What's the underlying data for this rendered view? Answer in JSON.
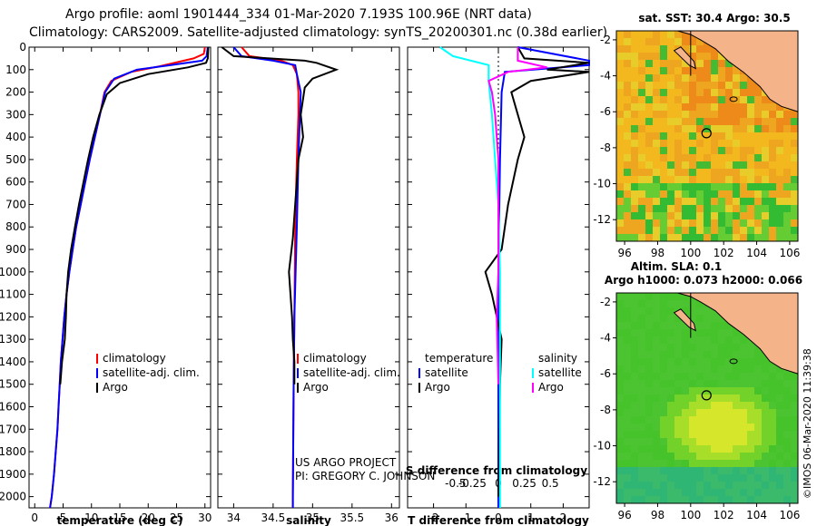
{
  "header": {
    "line1": "Argo profile: aoml 1901444_334 01-Mar-2020 7.193S 100.96E (NRT data)",
    "line2": "Climatology: CARS2009. Satellite-adjusted climatology: synTS_20200301.nc (0.38d earlier)"
  },
  "colors": {
    "climatology": "#ff0000",
    "satellite": "#0000ff",
    "argo": "#000000",
    "sat_salinity": "#00ffff",
    "argo_salinity": "#ff00ff",
    "land": "#f5b38a"
  },
  "chart_data": [
    {
      "id": "temperature",
      "type": "line",
      "xlabel": "temperature (deg C)",
      "xlim": [
        -1,
        31
      ],
      "xticks": [
        0,
        5,
        10,
        15,
        20,
        25,
        30
      ],
      "ylim": [
        0,
        2050
      ],
      "yticks": [
        0,
        100,
        200,
        300,
        400,
        500,
        600,
        700,
        800,
        900,
        1000,
        1100,
        1200,
        1300,
        1400,
        1500,
        1600,
        1700,
        1800,
        1900,
        2000
      ],
      "legend": [
        "climatology",
        "satellite-adj. clim.",
        "Argo"
      ],
      "series": [
        {
          "name": "climatology",
          "color": "#ff0000",
          "points": [
            [
              30,
              0
            ],
            [
              29.8,
              30
            ],
            [
              28,
              50
            ],
            [
              22,
              85
            ],
            [
              17,
              110
            ],
            [
              13.5,
              150
            ],
            [
              12.3,
              200
            ],
            [
              11.5,
              300
            ],
            [
              10.6,
              400
            ],
            [
              9.7,
              500
            ],
            [
              8.9,
              600
            ],
            [
              8.1,
              700
            ],
            [
              7.3,
              800
            ],
            [
              6.7,
              900
            ],
            [
              6.1,
              1000
            ],
            [
              5.6,
              1100
            ],
            [
              5.2,
              1200
            ],
            [
              4.9,
              1300
            ],
            [
              4.6,
              1400
            ],
            [
              4.4,
              1500
            ],
            [
              4.2,
              1600
            ],
            [
              4.0,
              1700
            ],
            [
              3.7,
              1800
            ],
            [
              3.4,
              1900
            ],
            [
              3.0,
              2000
            ],
            [
              2.7,
              2050
            ]
          ]
        },
        {
          "name": "satellite-adj. clim.",
          "color": "#0000ff",
          "points": [
            [
              30.5,
              0
            ],
            [
              30.3,
              40
            ],
            [
              29.5,
              60
            ],
            [
              24,
              80
            ],
            [
              18,
              100
            ],
            [
              14,
              140
            ],
            [
              12.4,
              200
            ],
            [
              11.5,
              300
            ],
            [
              10.6,
              400
            ],
            [
              9.7,
              500
            ],
            [
              8.9,
              600
            ],
            [
              8.1,
              700
            ],
            [
              7.3,
              800
            ],
            [
              6.7,
              900
            ],
            [
              6.1,
              1000
            ],
            [
              5.6,
              1100
            ],
            [
              5.2,
              1200
            ],
            [
              4.9,
              1300
            ],
            [
              4.6,
              1400
            ],
            [
              4.4,
              1500
            ],
            [
              4.2,
              1600
            ],
            [
              4.0,
              1700
            ],
            [
              3.7,
              1800
            ],
            [
              3.4,
              1900
            ],
            [
              3.0,
              2000
            ],
            [
              2.7,
              2050
            ]
          ]
        },
        {
          "name": "Argo",
          "color": "#000000",
          "points": [
            [
              30.6,
              0
            ],
            [
              30.5,
              50
            ],
            [
              30.2,
              70
            ],
            [
              27,
              90
            ],
            [
              20,
              120
            ],
            [
              15,
              160
            ],
            [
              12.7,
              210
            ],
            [
              11.4,
              300
            ],
            [
              10.3,
              400
            ],
            [
              9.4,
              500
            ],
            [
              8.6,
              600
            ],
            [
              7.8,
              700
            ],
            [
              7.1,
              800
            ],
            [
              6.4,
              900
            ],
            [
              5.9,
              1000
            ],
            [
              5.6,
              1100
            ],
            [
              5.5,
              1200
            ],
            [
              5.3,
              1300
            ],
            [
              4.8,
              1400
            ],
            [
              4.5,
              1500
            ]
          ]
        }
      ]
    },
    {
      "id": "salinity",
      "type": "line",
      "xlabel": "salinity",
      "xlim": [
        33.8,
        36.1
      ],
      "xticks": [
        "34",
        "34.5",
        "35",
        "35.5",
        "36"
      ],
      "ylim": [
        0,
        2050
      ],
      "legend": [
        "climatology",
        "satellite-adj. clim.",
        "Argo"
      ],
      "credits": [
        "US ARGO PROJECT",
        "PI: GREGORY C. JOHNSON"
      ],
      "series": [
        {
          "name": "climatology",
          "color": "#ff0000",
          "points": [
            [
              34.1,
              0
            ],
            [
              34.2,
              40
            ],
            [
              34.6,
              60
            ],
            [
              34.75,
              80
            ],
            [
              34.8,
              120
            ],
            [
              34.82,
              200
            ],
            [
              34.82,
              300
            ],
            [
              34.8,
              500
            ],
            [
              34.78,
              800
            ],
            [
              34.77,
              1200
            ],
            [
              34.76,
              1500
            ],
            [
              34.75,
              2000
            ],
            [
              34.75,
              2050
            ]
          ]
        },
        {
          "name": "satellite-adj. clim.",
          "color": "#0000ff",
          "points": [
            [
              34.0,
              0
            ],
            [
              34.1,
              40
            ],
            [
              34.5,
              60
            ],
            [
              34.78,
              80
            ],
            [
              34.8,
              120
            ],
            [
              34.85,
              200
            ],
            [
              34.84,
              300
            ],
            [
              34.82,
              500
            ],
            [
              34.8,
              800
            ],
            [
              34.77,
              1200
            ],
            [
              34.76,
              1500
            ],
            [
              34.75,
              2000
            ],
            [
              34.75,
              2050
            ]
          ]
        },
        {
          "name": "Argo",
          "color": "#000000",
          "points": [
            [
              33.85,
              0
            ],
            [
              34.0,
              40
            ],
            [
              34.9,
              60
            ],
            [
              35.05,
              70
            ],
            [
              35.3,
              100
            ],
            [
              35.0,
              140
            ],
            [
              34.9,
              180
            ],
            [
              34.85,
              300
            ],
            [
              34.88,
              400
            ],
            [
              34.82,
              500
            ],
            [
              34.78,
              700
            ],
            [
              34.75,
              850
            ],
            [
              34.7,
              1000
            ],
            [
              34.72,
              1100
            ],
            [
              34.74,
              1200
            ],
            [
              34.75,
              1300
            ],
            [
              34.77,
              1400
            ],
            [
              34.77,
              1500
            ]
          ]
        }
      ]
    },
    {
      "id": "difference",
      "type": "line",
      "xlabel": "T difference from climatology",
      "secondary_label": "S difference from climatology",
      "xlim": [
        -2.8,
        2.8
      ],
      "xticks": [
        "-2",
        "-1",
        "0",
        "1",
        "2"
      ],
      "secondary_xticks": [
        "-0.5",
        "-0.25",
        "0",
        "0.25",
        "0.5"
      ],
      "ylim": [
        0,
        2050
      ],
      "legend_headings": [
        "temperature",
        "salinity"
      ],
      "legend": [
        "satellite",
        "Argo",
        "satellite",
        "Argo"
      ],
      "series": [
        {
          "name": "T satellite",
          "color": "#0000ff",
          "points": [
            [
              0.6,
              0
            ],
            [
              2.8,
              60
            ],
            [
              2.8,
              80
            ],
            [
              0.2,
              110
            ],
            [
              0.1,
              200
            ],
            [
              0.05,
              500
            ],
            [
              0,
              1000
            ],
            [
              0,
              2050
            ]
          ]
        },
        {
          "name": "T Argo",
          "color": "#000000",
          "points": [
            [
              0.6,
              0
            ],
            [
              0.8,
              50
            ],
            [
              2.8,
              70
            ],
            [
              1.5,
              100
            ],
            [
              2.8,
              110
            ],
            [
              1.0,
              150
            ],
            [
              0.4,
              200
            ],
            [
              0.6,
              300
            ],
            [
              0.8,
              400
            ],
            [
              0.6,
              500
            ],
            [
              0.3,
              700
            ],
            [
              0.1,
              900
            ],
            [
              -0.4,
              1000
            ],
            [
              -0.2,
              1100
            ],
            [
              0.1,
              1300
            ],
            [
              0.05,
              1500
            ],
            [
              0,
              2000
            ]
          ]
        },
        {
          "name": "S satellite",
          "color": "#00ffff",
          "points": [
            [
              -1.8,
              0
            ],
            [
              -1.4,
              40
            ],
            [
              -0.3,
              80
            ],
            [
              -0.3,
              150
            ],
            [
              -0.2,
              300
            ],
            [
              -0.1,
              500
            ],
            [
              0,
              700
            ],
            [
              0.05,
              1000
            ],
            [
              0.05,
              1500
            ],
            [
              0.05,
              2050
            ]
          ]
        },
        {
          "name": "S Argo",
          "color": "#ff00ff",
          "points": [
            [
              0.6,
              0
            ],
            [
              0.6,
              60
            ],
            [
              1.5,
              90
            ],
            [
              0.3,
              110
            ],
            [
              -0.3,
              150
            ],
            [
              -0.2,
              200
            ],
            [
              -0.1,
              300
            ],
            [
              0,
              500
            ],
            [
              0,
              800
            ],
            [
              0,
              1000
            ],
            [
              -0.05,
              1200
            ],
            [
              0,
              1500
            ]
          ]
        }
      ]
    }
  ],
  "map_top": {
    "title": "sat. SST: 30.4 Argo: 30.5",
    "xticks": [
      "96",
      "98",
      "100",
      "102",
      "104",
      "106"
    ],
    "yticks": [
      "-2",
      "-4",
      "-6",
      "-8",
      "-10",
      "-12"
    ],
    "xlim": [
      95.5,
      106.5
    ],
    "ylim": [
      -1.5,
      -13.2
    ],
    "argo_lon": 100.96,
    "argo_lat": -7.193
  },
  "map_bottom": {
    "title1": "Altim. SLA: 0.1",
    "title2": "Argo h1000: 0.073 h2000: 0.066",
    "xticks": [
      "96",
      "98",
      "100",
      "102",
      "104",
      "106"
    ],
    "yticks": [
      "-2",
      "-4",
      "-6",
      "-8",
      "-10",
      "-12"
    ],
    "xlim": [
      95.5,
      106.5
    ],
    "ylim": [
      -1.5,
      -13.2
    ],
    "argo_lon": 100.96,
    "argo_lat": -7.193
  },
  "watermark": "©IMOS 06-Mar-2020 11:39:38"
}
